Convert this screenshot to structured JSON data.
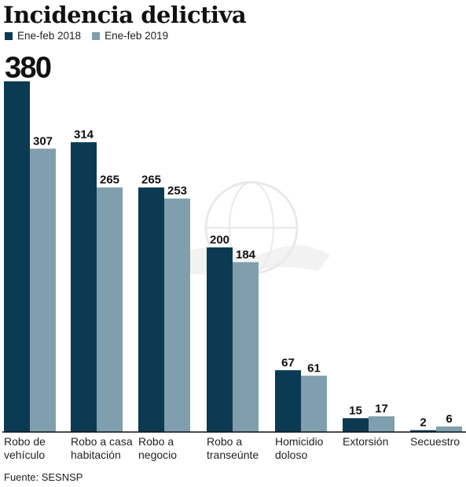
{
  "colors": {
    "series_2018": "#0b3a52",
    "series_2019": "#7f9fae",
    "axis": "#111111",
    "text": "#111111",
    "watermark": "#e9e9e9"
  },
  "source": "Fuente: SESNSP",
  "chart_data": {
    "type": "bar",
    "title": "Incidencia delictiva",
    "xlabel": "",
    "ylabel": "",
    "grid": false,
    "legend_position": "top-left",
    "ylim": [
      0,
      400
    ],
    "categories": [
      [
        "Robo de",
        "vehículo"
      ],
      [
        "Robo a casa",
        "habitación"
      ],
      [
        "Robo a",
        "negocio"
      ],
      [
        "Robo a",
        "transeúnte"
      ],
      [
        "Homicidio",
        "doloso"
      ],
      [
        "Extorsión"
      ],
      [
        "Secuestro"
      ]
    ],
    "series": [
      {
        "name": "Ene-feb 2018",
        "values": [
          380,
          314,
          265,
          200,
          67,
          15,
          2
        ]
      },
      {
        "name": "Ene-feb 2019",
        "values": [
          307,
          265,
          253,
          184,
          61,
          17,
          6
        ]
      }
    ]
  }
}
